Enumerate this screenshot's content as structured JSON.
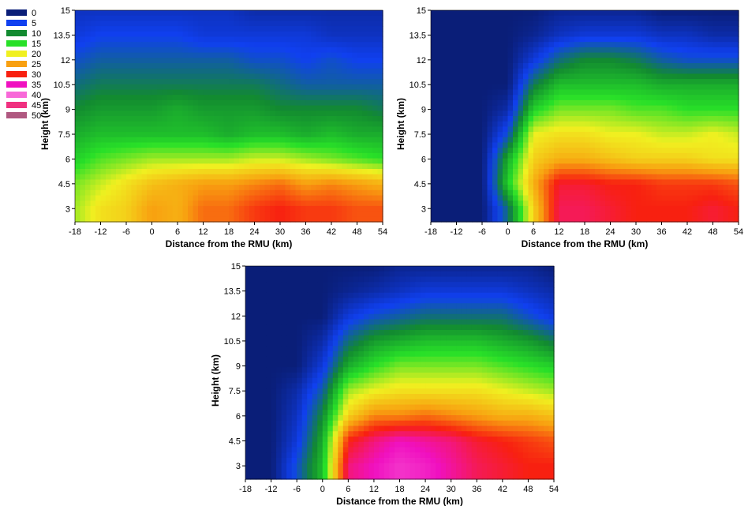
{
  "legend": {
    "items": [
      {
        "label": "0",
        "color": "#0a1e78"
      },
      {
        "label": "5",
        "color": "#1040f0"
      },
      {
        "label": "10",
        "color": "#128a30"
      },
      {
        "label": "15",
        "color": "#28e028"
      },
      {
        "label": "20",
        "color": "#f0f020"
      },
      {
        "label": "25",
        "color": "#f8a010"
      },
      {
        "label": "30",
        "color": "#f82010"
      },
      {
        "label": "35",
        "color": "#f010c0"
      },
      {
        "label": "40",
        "color": "#f868d8"
      },
      {
        "label": "45",
        "color": "#f03080"
      },
      {
        "label": "50",
        "color": "#b05880"
      }
    ]
  },
  "chart_data": [
    {
      "type": "heatmap",
      "xlabel": "Distance from the RMU (km)",
      "ylabel": "Height (km)",
      "xlim": [
        -18,
        54
      ],
      "ylim": [
        2.2,
        15
      ],
      "xticks": [
        "-18",
        "-12",
        "-6",
        "0",
        "6",
        "12",
        "18",
        "24",
        "30",
        "36",
        "42",
        "48",
        "54"
      ],
      "yticks": [
        "3",
        "4.5",
        "6",
        "7.5",
        "9",
        "10.5",
        "12",
        "13.5",
        "15"
      ],
      "z_units_levels": [
        0,
        5,
        10,
        15,
        20,
        25,
        30,
        35,
        40,
        45,
        50
      ],
      "x": [
        -18,
        -12,
        -6,
        0,
        6,
        12,
        18,
        24,
        30,
        36,
        42,
        48,
        54
      ],
      "y": [
        3,
        4.5,
        6,
        7.5,
        9,
        10.5,
        12,
        13.5,
        15
      ],
      "z": [
        [
          18,
          21,
          22,
          25,
          24,
          27,
          27,
          29,
          30,
          29,
          29,
          28,
          28
        ],
        [
          17,
          19,
          21,
          23,
          24,
          25,
          25,
          26,
          27,
          25,
          26,
          25,
          24
        ],
        [
          14,
          16,
          17,
          18,
          18,
          18,
          18,
          19,
          19,
          18,
          17,
          16,
          15
        ],
        [
          12,
          13,
          13,
          13,
          13,
          13,
          12,
          13,
          13,
          12,
          13,
          12,
          12
        ],
        [
          10,
          11,
          11,
          11,
          12,
          11,
          11,
          11,
          10,
          10,
          10,
          10,
          9
        ],
        [
          8,
          9,
          9,
          9,
          9,
          9,
          9,
          9,
          8,
          7,
          7,
          7,
          7
        ],
        [
          6,
          7,
          7,
          7,
          7,
          7,
          7,
          6,
          6,
          5,
          6,
          5,
          5
        ],
        [
          4,
          5,
          5,
          5,
          5,
          4,
          4,
          4,
          4,
          4,
          3,
          3,
          3
        ],
        [
          3,
          3,
          3,
          3,
          3,
          3,
          3,
          2,
          2,
          2,
          2,
          2,
          2
        ]
      ]
    },
    {
      "type": "heatmap",
      "xlabel": "Distance from the RMU (km)",
      "ylabel": "Height (km)",
      "xlim": [
        -18,
        54
      ],
      "ylim": [
        2.2,
        15
      ],
      "xticks": [
        "-18",
        "-12",
        "-6",
        "0",
        "6",
        "12",
        "18",
        "24",
        "30",
        "36",
        "42",
        "48",
        "54"
      ],
      "yticks": [
        "3",
        "4.5",
        "6",
        "7.5",
        "9",
        "10.5",
        "12",
        "13.5",
        "15"
      ],
      "z_units_levels": [
        0,
        5,
        10,
        15,
        20,
        25,
        30,
        35,
        40,
        45,
        50
      ],
      "x": [
        -18,
        -12,
        -6,
        0,
        6,
        12,
        18,
        24,
        30,
        36,
        42,
        48,
        54
      ],
      "y": [
        3,
        4.5,
        6,
        7.5,
        9,
        10.5,
        12,
        13.5,
        15
      ],
      "z": [
        [
          0,
          0,
          0,
          8,
          22,
          32,
          32,
          31,
          30,
          30,
          30,
          31,
          30
        ],
        [
          0,
          0,
          0,
          14,
          24,
          31,
          31,
          30,
          30,
          29,
          29,
          29,
          28
        ],
        [
          0,
          0,
          0,
          12,
          22,
          24,
          24,
          23,
          22,
          22,
          22,
          21,
          21
        ],
        [
          0,
          0,
          0,
          6,
          20,
          21,
          21,
          20,
          20,
          19,
          19,
          20,
          19
        ],
        [
          0,
          0,
          0,
          2,
          14,
          17,
          17,
          17,
          16,
          16,
          15,
          15,
          15
        ],
        [
          0,
          0,
          0,
          0,
          9,
          13,
          13,
          13,
          13,
          12,
          12,
          12,
          12
        ],
        [
          0,
          0,
          0,
          0,
          4,
          8,
          10,
          10,
          9,
          7,
          6,
          6,
          6
        ],
        [
          0,
          0,
          0,
          0,
          1,
          3,
          4,
          4,
          4,
          3,
          3,
          2,
          2
        ],
        [
          0,
          0,
          0,
          0,
          0,
          1,
          1,
          1,
          1,
          0,
          0,
          0,
          0
        ]
      ]
    },
    {
      "type": "heatmap",
      "xlabel": "Distance from the RMU (km)",
      "ylabel": "Height (km)",
      "xlim": [
        -18,
        54
      ],
      "ylim": [
        2.2,
        15
      ],
      "xticks": [
        "-18",
        "-12",
        "-6",
        "0",
        "6",
        "12",
        "18",
        "24",
        "30",
        "36",
        "42",
        "48",
        "54"
      ],
      "yticks": [
        "3",
        "4.5",
        "6",
        "7.5",
        "9",
        "10.5",
        "12",
        "13.5",
        "15"
      ],
      "z_units_levels": [
        0,
        5,
        10,
        15,
        20,
        25,
        30,
        35,
        40,
        45,
        50
      ],
      "x": [
        -18,
        -12,
        -6,
        0,
        6,
        12,
        18,
        24,
        30,
        36,
        42,
        48,
        54
      ],
      "y": [
        3,
        4.5,
        6,
        7.5,
        9,
        10.5,
        12,
        13.5,
        15
      ],
      "z": [
        [
          0,
          0,
          6,
          13,
          33,
          35,
          37,
          36,
          34,
          32,
          31,
          30,
          30
        ],
        [
          0,
          0,
          4,
          12,
          30,
          33,
          35,
          34,
          33,
          31,
          30,
          29,
          28
        ],
        [
          0,
          0,
          3,
          10,
          22,
          26,
          26,
          27,
          26,
          25,
          24,
          24,
          23
        ],
        [
          0,
          0,
          2,
          7,
          18,
          20,
          21,
          21,
          21,
          21,
          20,
          19,
          18
        ],
        [
          0,
          0,
          0,
          4,
          12,
          15,
          17,
          17,
          17,
          17,
          16,
          15,
          14
        ],
        [
          0,
          0,
          0,
          2,
          8,
          11,
          12,
          13,
          13,
          13,
          12,
          11,
          9
        ],
        [
          0,
          0,
          0,
          0,
          4,
          6,
          7,
          8,
          8,
          8,
          8,
          6,
          4
        ],
        [
          0,
          0,
          0,
          0,
          1,
          2,
          3,
          4,
          4,
          4,
          4,
          3,
          2
        ],
        [
          0,
          0,
          0,
          0,
          0,
          0,
          1,
          1,
          1,
          1,
          1,
          1,
          0
        ]
      ]
    }
  ]
}
